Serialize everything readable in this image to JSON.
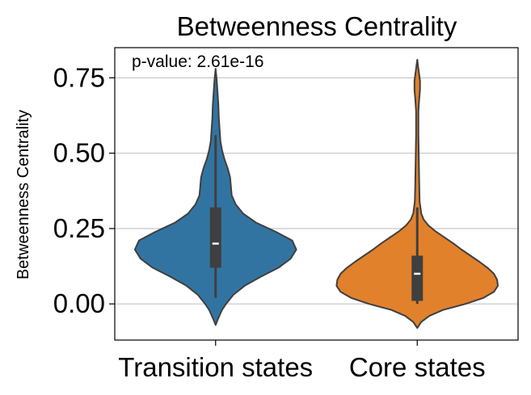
{
  "chart_data": {
    "type": "violin",
    "title": "Betweenness Centrality",
    "xlabel": "",
    "ylabel": "Betweenness Centrality",
    "annotation": "p-value: 2.61e-16",
    "ylim": [
      -0.12,
      0.85
    ],
    "yticks": [
      0.0,
      0.25,
      0.5,
      0.75
    ],
    "ytick_labels": [
      "0.00",
      "0.25",
      "0.50",
      "0.75"
    ],
    "grid": "y",
    "categories": [
      "Transition states",
      "Core states"
    ],
    "violins": [
      {
        "category": "Transition states",
        "color": "#3274a1",
        "min": 0.02,
        "q1": 0.12,
        "median": 0.2,
        "q3": 0.32,
        "max": 0.56,
        "kde_low": -0.07,
        "kde_high": 0.78,
        "profile": [
          [
            -0.07,
            0.0
          ],
          [
            -0.05,
            0.03
          ],
          [
            -0.02,
            0.08
          ],
          [
            0.0,
            0.13
          ],
          [
            0.03,
            0.22
          ],
          [
            0.06,
            0.36
          ],
          [
            0.09,
            0.56
          ],
          [
            0.12,
            0.78
          ],
          [
            0.15,
            0.93
          ],
          [
            0.18,
            1.0
          ],
          [
            0.21,
            0.95
          ],
          [
            0.24,
            0.74
          ],
          [
            0.27,
            0.5
          ],
          [
            0.3,
            0.34
          ],
          [
            0.33,
            0.25
          ],
          [
            0.36,
            0.2
          ],
          [
            0.39,
            0.19
          ],
          [
            0.42,
            0.18
          ],
          [
            0.45,
            0.15
          ],
          [
            0.48,
            0.11
          ],
          [
            0.51,
            0.08
          ],
          [
            0.54,
            0.06
          ],
          [
            0.58,
            0.05
          ],
          [
            0.62,
            0.04
          ],
          [
            0.66,
            0.035
          ],
          [
            0.7,
            0.025
          ],
          [
            0.74,
            0.015
          ],
          [
            0.76,
            0.008
          ],
          [
            0.78,
            0.0
          ]
        ]
      },
      {
        "category": "Core states",
        "color": "#e1812c",
        "min": 0.0,
        "q1": 0.01,
        "median": 0.1,
        "q3": 0.16,
        "max": 0.32,
        "kde_low": -0.08,
        "kde_high": 0.81,
        "profile": [
          [
            -0.08,
            0.0
          ],
          [
            -0.06,
            0.05
          ],
          [
            -0.04,
            0.15
          ],
          [
            -0.02,
            0.32
          ],
          [
            0.0,
            0.6
          ],
          [
            0.02,
            0.82
          ],
          [
            0.04,
            0.95
          ],
          [
            0.06,
            1.0
          ],
          [
            0.08,
            0.99
          ],
          [
            0.1,
            0.95
          ],
          [
            0.12,
            0.87
          ],
          [
            0.14,
            0.77
          ],
          [
            0.16,
            0.66
          ],
          [
            0.18,
            0.55
          ],
          [
            0.2,
            0.45
          ],
          [
            0.22,
            0.34
          ],
          [
            0.24,
            0.23
          ],
          [
            0.26,
            0.14
          ],
          [
            0.28,
            0.08
          ],
          [
            0.3,
            0.05
          ],
          [
            0.34,
            0.03
          ],
          [
            0.4,
            0.025
          ],
          [
            0.48,
            0.02
          ],
          [
            0.56,
            0.015
          ],
          [
            0.64,
            0.015
          ],
          [
            0.68,
            0.025
          ],
          [
            0.71,
            0.035
          ],
          [
            0.74,
            0.035
          ],
          [
            0.77,
            0.02
          ],
          [
            0.79,
            0.01
          ],
          [
            0.81,
            0.0
          ]
        ]
      }
    ]
  }
}
